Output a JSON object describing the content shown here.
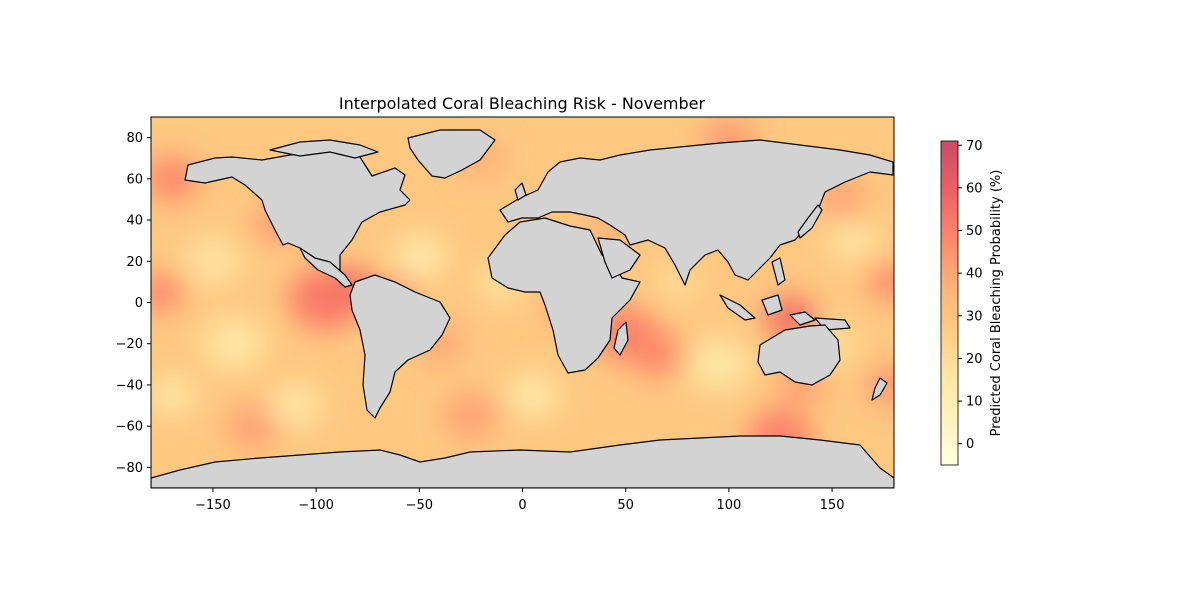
{
  "chart_data": {
    "type": "heatmap",
    "title": "Interpolated Coral Bleaching Risk - November",
    "xlabel": "",
    "ylabel": "",
    "xlim": [
      -180,
      180
    ],
    "ylim": [
      -90,
      90
    ],
    "xticks": [
      -150,
      -100,
      -50,
      0,
      50,
      100,
      150
    ],
    "yticks": [
      -80,
      -60,
      -40,
      -20,
      0,
      20,
      40,
      60,
      80
    ],
    "colorbar": {
      "label": "Predicted Coral Bleaching Probability (%)",
      "range": [
        -5,
        71
      ],
      "ticks": [
        0,
        10,
        20,
        30,
        40,
        50,
        60,
        70
      ],
      "colormap": [
        "#ffffcc",
        "#ffeda0",
        "#fed976",
        "#feb24c",
        "#fd8d3c",
        "#fc4e2a",
        "#e31a1c",
        "#b10026"
      ],
      "alpha": 0.7
    },
    "background_value": 28,
    "hotspots": [
      {
        "lon": -95,
        "lat": 2,
        "value": 52,
        "radius": 14
      },
      {
        "lon": -80,
        "lat": 8,
        "value": 58,
        "radius": 7
      },
      {
        "lon": -175,
        "lat": 5,
        "value": 50,
        "radius": 8
      },
      {
        "lon": -170,
        "lat": 60,
        "value": 48,
        "radius": 10
      },
      {
        "lon": -120,
        "lat": 38,
        "value": 44,
        "radius": 8
      },
      {
        "lon": -60,
        "lat": 5,
        "value": 46,
        "radius": 7
      },
      {
        "lon": -40,
        "lat": -20,
        "value": 40,
        "radius": 9
      },
      {
        "lon": 50,
        "lat": -15,
        "value": 50,
        "radius": 12
      },
      {
        "lon": 65,
        "lat": -25,
        "value": 48,
        "radius": 10
      },
      {
        "lon": 130,
        "lat": -8,
        "value": 55,
        "radius": 10
      },
      {
        "lon": 125,
        "lat": -65,
        "value": 50,
        "radius": 12
      },
      {
        "lon": 135,
        "lat": -40,
        "value": 42,
        "radius": 9
      },
      {
        "lon": 178,
        "lat": 10,
        "value": 48,
        "radius": 8
      },
      {
        "lon": 178,
        "lat": -40,
        "value": 46,
        "radius": 8
      },
      {
        "lon": -130,
        "lat": -60,
        "value": 42,
        "radius": 10
      },
      {
        "lon": -25,
        "lat": -55,
        "value": 42,
        "radius": 10
      },
      {
        "lon": 100,
        "lat": 78,
        "value": 44,
        "radius": 10
      },
      {
        "lon": 155,
        "lat": 50,
        "value": 42,
        "radius": 9
      },
      {
        "lon": -20,
        "lat": 70,
        "value": 38,
        "radius": 9
      },
      {
        "lon": 40,
        "lat": 35,
        "value": 40,
        "radius": 7
      },
      {
        "lon": 20,
        "lat": 0,
        "value": 40,
        "radius": 8
      },
      {
        "lon": -150,
        "lat": 20,
        "value": 18,
        "radius": 11
      },
      {
        "lon": -140,
        "lat": -20,
        "value": 16,
        "radius": 12
      },
      {
        "lon": -110,
        "lat": -50,
        "value": 16,
        "radius": 10
      },
      {
        "lon": -50,
        "lat": 22,
        "value": 14,
        "radius": 10
      },
      {
        "lon": -10,
        "lat": 10,
        "value": 18,
        "radius": 9
      },
      {
        "lon": 5,
        "lat": -45,
        "value": 15,
        "radius": 10
      },
      {
        "lon": 95,
        "lat": -30,
        "value": 16,
        "radius": 12
      },
      {
        "lon": 160,
        "lat": 30,
        "value": 18,
        "radius": 10
      },
      {
        "lon": 150,
        "lat": -20,
        "value": 18,
        "radius": 9
      },
      {
        "lon": -170,
        "lat": -45,
        "value": 16,
        "radius": 9
      },
      {
        "lon": 75,
        "lat": 10,
        "value": 20,
        "radius": 8
      }
    ]
  }
}
